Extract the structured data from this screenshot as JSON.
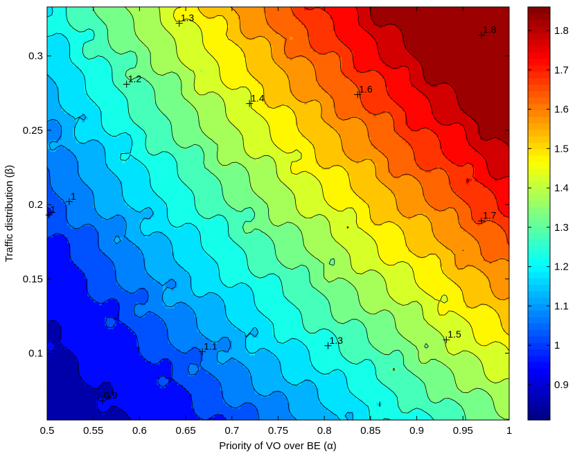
{
  "chart_data": {
    "type": "contour",
    "xlabel": "Priority of VO over BE (α)",
    "ylabel": "Traffic distribution (β)",
    "xlim": [
      0.5,
      1.0
    ],
    "ylim": [
      0.055,
      0.333
    ],
    "x_ticks": [
      "0.5",
      "0.55",
      "0.6",
      "0.65",
      "0.7",
      "0.75",
      "0.8",
      "0.85",
      "0.9",
      "0.95",
      "1"
    ],
    "x_tick_values": [
      0.5,
      0.55,
      0.6,
      0.65,
      0.7,
      0.75,
      0.8,
      0.85,
      0.9,
      0.95,
      1.0
    ],
    "y_ticks": [
      "0.1",
      "0.15",
      "0.2",
      "0.25",
      "0.3"
    ],
    "y_tick_values": [
      0.1,
      0.15,
      0.2,
      0.25,
      0.3
    ],
    "colorbar": {
      "range": [
        0.81,
        1.86
      ],
      "tick_labels": [
        "0.9",
        "1",
        "1.1",
        "1.2",
        "1.3",
        "1.4",
        "1.5",
        "1.6",
        "1.7",
        "1.8"
      ],
      "tick_values": [
        0.9,
        1.0,
        1.1,
        1.2,
        1.3,
        1.4,
        1.5,
        1.6,
        1.7,
        1.8
      ],
      "colormap": "jet"
    },
    "contour_levels": [
      0.9,
      1.0,
      1.05,
      1.1,
      1.15,
      1.2,
      1.25,
      1.3,
      1.35,
      1.4,
      1.45,
      1.5,
      1.55,
      1.6,
      1.65,
      1.7,
      1.75,
      1.8
    ],
    "contour_labels": [
      {
        "text": "0.9",
        "x": 0.56,
        "y": 0.068
      },
      {
        "text": "1",
        "x": 0.502,
        "y": 0.193
      },
      {
        "text": "1",
        "x": 0.524,
        "y": 0.202
      },
      {
        "text": "1.1",
        "x": 0.668,
        "y": 0.101
      },
      {
        "text": "1.2",
        "x": 0.586,
        "y": 0.281
      },
      {
        "text": "1.3",
        "x": 0.643,
        "y": 0.322
      },
      {
        "text": "1.3",
        "x": 0.804,
        "y": 0.105
      },
      {
        "text": "1.4",
        "x": 0.719,
        "y": 0.268
      },
      {
        "text": "1.5",
        "x": 0.932,
        "y": 0.109
      },
      {
        "text": "1.6",
        "x": 0.836,
        "y": 0.274
      },
      {
        "text": "1.7",
        "x": 0.97,
        "y": 0.189
      },
      {
        "text": "1.8",
        "x": 0.97,
        "y": 0.314
      }
    ]
  }
}
